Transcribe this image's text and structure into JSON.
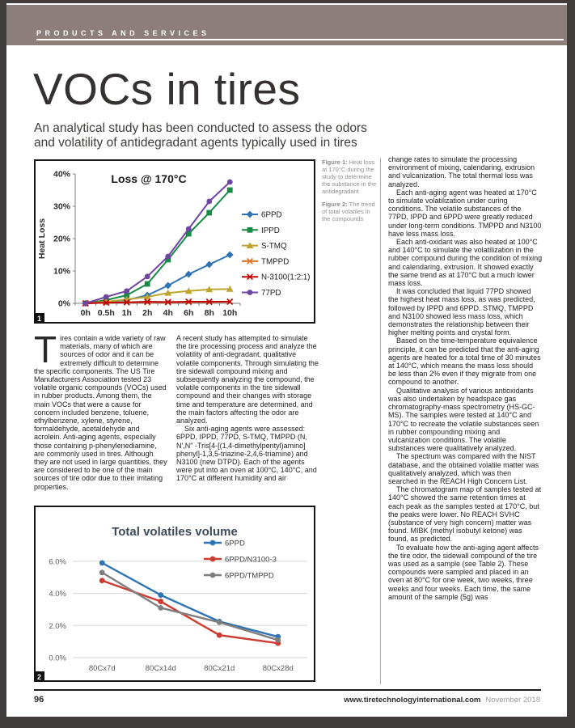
{
  "header": {
    "section_label": "PRODUCTS AND SERVICES"
  },
  "page": {
    "title": "VOCs in tires",
    "subtitle_line1": "An analytical study has been conducted to assess the odors",
    "subtitle_line2": "and volatility of antidegradant agents typically used in tires"
  },
  "theme": {
    "header_bar": "#8d7e7b",
    "page_frame": "#403c3b"
  },
  "figures": {
    "figure1": {
      "label": "Figure 1:",
      "text": " Heat loss at 170°C during the study to determine the substance in the antidegradant",
      "badge": "1"
    },
    "figure2": {
      "label": "Figure 2:",
      "text": " The trend of total volatiles in the compounds",
      "badge": "2"
    }
  },
  "article": {
    "col1": {
      "dropcap": "T",
      "text": "ires contain a wide variety of raw materials, many of which are sources of odor and it can be extremely difficult to determine the specific components. The US Tire Manufacturers Association tested 23 volatile organic compounds (VOCs) used in rubber products. Among them, the main VOCs that were a cause for concern included benzene, toluene, ethylbenzene, xylene, styrene, formaldehyde, acetaldehyde and acrolein. Anti-aging agents, especially those containing p-phenylenediamine, are commonly used in tires. Although they are not used in large quantities, they are considered to be one of the main sources of tire odor due to their irritating properties."
    },
    "col2": [
      "A recent study has attempted to simulate the tire processing process and analyze the volatility of anti-degradant, qualitative volatile components. Through simulating the tire sidewall compound mixing and subsequently analyzing the compound, the volatile components in the tire sidewall compound and their changes with storage time and temperature are determined, and the main factors affecting the odor are analyzed.",
      "Six anti-aging agents were assessed: 6PPD, IPPD, 77PD, S-TMQ, TMPPD (N, N',N\" -Tris[4-[(1,4-dimethylpentyl)amino] phenyl]-1,3,5-triazine-2,4,6-triamine) and N3100 (new DTPD). Each of the agents were put into an oven at 100°C, 140°C, and 170°C at different humidity and air"
    ],
    "col3": [
      "change rates to simulate the processing environment of mixing, calendaring, extrusion and vulcanization. The total thermal loss was analyzed.",
      "Each anti-aging agent was heated at 170°C to simulate volatilization under curing conditions. The volatile substances of the 77PD, IPPD and 6PPD were greatly reduced under long-term conditions. TMPPD and N3100 have less mass loss.",
      "Each anti-oxidant was also heated at 100°C and 140°C to simulate the volatilization in the rubber compound during the condition of mixing and calendaring, extrusion. It showed exactly the same trend as at 170°C but a much lower mass loss.",
      "It was concluded that liquid 77PD showed the highest heat mass loss, as was predicted, followed by IPPD and 6PPD. STMQ, TMPPD and N3100 showed less mass loss, which demonstrates the relationship between their higher melting points and crystal form.",
      "Based on the time-temperature equivalence principle, it can be predicted that the anti-aging agents are heated for a total time of 30 minutes at 140°C, which means the mass loss should be less than 2% even if they migrate from one compound to another.",
      "Qualitative analysis of various antioxidants was also undertaken by headspace gas chromatography-mass spectrometry (HS-GC-MS). The samples were tested at 140°C and 170°C to recreate the volatile substances seen in rubber compounding mixing and vulcanization conditions. The volatile substances were qualitatively analyzed.",
      "The spectrum was compared with the NIST database, and the obtained volatile matter was qualitatively analyzed, which was then searched in the REACH High Concern List.",
      "The chromatogram map of samples tested at 140°C showed the same retention times at each peak as the samples tested at 170°C, but the peaks were lower. No REACH SVHC (substance of very high concern) matter was found. MIBK (methyl isobutyl ketone) was found, as predicted.",
      "To evaluate how the anti-aging agent affects the tire odor, the sidewall compound of the tire was used as a sample (see Table 2). These compounds were sampled and placed in an oven at 80°C for one week, two weeks, three weeks and four weeks. Each time, the same amount of the sample (5g) was"
    ]
  },
  "footer": {
    "page_number": "96",
    "website": "www.tiretechnologyinternational.com",
    "issue": "November 2018"
  },
  "chart_data": [
    {
      "type": "line",
      "title": "Loss @ 170°C",
      "ylabel": "Heat Loss",
      "categories": [
        "0h",
        "0.5h",
        "1h",
        "2h",
        "4h",
        "6h",
        "8h",
        "10h"
      ],
      "ylim": [
        0,
        40
      ],
      "yticks": [
        0,
        10,
        20,
        30,
        40
      ],
      "ytick_format": "percent0",
      "grid": false,
      "legend_position": "right",
      "series": [
        {
          "name": "6PPD",
          "color": "#2E74B5",
          "marker": "diamond",
          "values": [
            0,
            0.5,
            1,
            2.5,
            5.5,
            9,
            12,
            15
          ]
        },
        {
          "name": "IPPD",
          "color": "#178A45",
          "marker": "square",
          "values": [
            0,
            1,
            2.5,
            6,
            13.5,
            21.5,
            28,
            35
          ]
        },
        {
          "name": "S-TMQ",
          "color": "#BEA32C",
          "marker": "triangle",
          "values": [
            0,
            0.5,
            1.2,
            2,
            3.2,
            3.8,
            4.3,
            4.4
          ]
        },
        {
          "name": "TMPPD",
          "color": "#E3701B",
          "marker": "x",
          "values": [
            0,
            0.2,
            0.3,
            0.3,
            0.3,
            0.4,
            0.4,
            0.5
          ]
        },
        {
          "name": "N-3100(1:2:1)",
          "color": "#C00000",
          "marker": "x",
          "values": [
            0,
            0.2,
            0.3,
            0.5,
            0.4,
            0.5,
            0.5,
            0.5
          ]
        },
        {
          "name": "77PD",
          "color": "#6F44A3",
          "marker": "circle",
          "values": [
            0,
            2,
            3.8,
            8.3,
            14.5,
            23,
            31.5,
            37.5
          ]
        }
      ]
    },
    {
      "type": "line",
      "title": "Total volatiles volume",
      "ylabel": "",
      "categories": [
        "80Cx7d",
        "80Cx14d",
        "80Cx21d",
        "80Cx28d"
      ],
      "ylim": [
        0,
        6.5
      ],
      "yticks": [
        0,
        2,
        4,
        6
      ],
      "ytick_format": "percent1",
      "grid": true,
      "legend_position": "top-right",
      "series": [
        {
          "name": "6PPD",
          "color": "#2E74B5",
          "marker": "circle",
          "values": [
            5.9,
            3.9,
            2.25,
            1.3
          ]
        },
        {
          "name": "6PPD/N3100-3",
          "color": "#CF3A2E",
          "marker": "circle",
          "values": [
            4.8,
            3.5,
            1.4,
            0.9
          ]
        },
        {
          "name": "6PPD/TMPPD",
          "color": "#7F7F7F",
          "marker": "circle",
          "values": [
            5.3,
            3.1,
            2.2,
            1.1
          ]
        }
      ]
    }
  ]
}
